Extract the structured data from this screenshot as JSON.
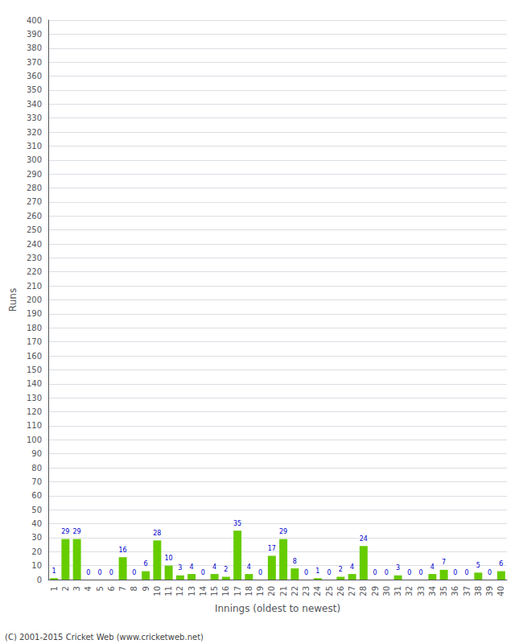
{
  "chart_data": {
    "type": "bar",
    "categories": [
      "1",
      "2",
      "3",
      "4",
      "5",
      "6",
      "7",
      "8",
      "9",
      "10",
      "11",
      "12",
      "13",
      "14",
      "15",
      "16",
      "17",
      "18",
      "19",
      "20",
      "21",
      "22",
      "23",
      "24",
      "25",
      "26",
      "27",
      "28",
      "29",
      "30",
      "31",
      "32",
      "33",
      "34",
      "35",
      "36",
      "37",
      "38",
      "39",
      "40"
    ],
    "values": [
      1,
      29,
      29,
      0,
      0,
      0,
      16,
      0,
      6,
      28,
      10,
      3,
      4,
      0,
      4,
      2,
      35,
      4,
      0,
      17,
      29,
      8,
      0,
      1,
      0,
      2,
      4,
      24,
      0,
      0,
      3,
      0,
      0,
      4,
      7,
      0,
      0,
      5,
      0,
      6
    ],
    "color": "#66cc00",
    "xlabel": "Innings (oldest to newest)",
    "ylabel": "Runs",
    "annotations": [
      "(C) 2001-2015 Cricket Web (www.cricketweb.net)"
    ],
    "ylim": [
      0,
      400
    ],
    "yticks": [
      0,
      10,
      20,
      30,
      40,
      50,
      60,
      70,
      80,
      90,
      100,
      110,
      120,
      130,
      140,
      150,
      160,
      170,
      180,
      190,
      200,
      210,
      220,
      230,
      240,
      250,
      260,
      270,
      280,
      290,
      300,
      310,
      320,
      330,
      340,
      350,
      360,
      370,
      380,
      390,
      400
    ],
    "grid": true,
    "data_labels": true
  }
}
